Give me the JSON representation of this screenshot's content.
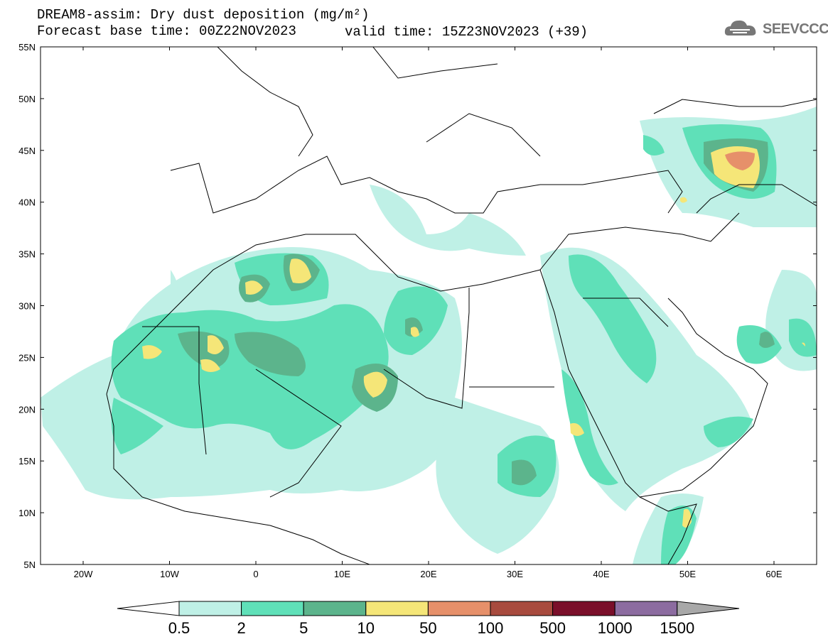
{
  "title": {
    "line1": "DREAM8-assim: Dry dust deposition (mg/m²)",
    "line2": "Forecast base time: 00Z22NOV2023",
    "valid": "valid time: 15Z23NOV2023 (+39)"
  },
  "logo": {
    "text": "SEEVCCC",
    "icon": "cloud-logo-icon"
  },
  "axes": {
    "lat_labels": [
      "55N",
      "50N",
      "45N",
      "40N",
      "35N",
      "30N",
      "25N",
      "20N",
      "15N",
      "10N",
      "5N"
    ],
    "lon_labels": [
      "20W",
      "10W",
      "0",
      "10E",
      "20E",
      "30E",
      "40E",
      "50E",
      "60E"
    ]
  },
  "colorbar": {
    "labels": [
      "0.5",
      "2",
      "5",
      "10",
      "50",
      "100",
      "500",
      "1000",
      "1500"
    ],
    "colors": [
      "#ffffff",
      "#bff0e6",
      "#5fe0b8",
      "#5cb48c",
      "#f5e678",
      "#e6906a",
      "#a84b3e",
      "#7a0f2a",
      "#8c6ca0",
      "#a8a8a8"
    ]
  }
}
